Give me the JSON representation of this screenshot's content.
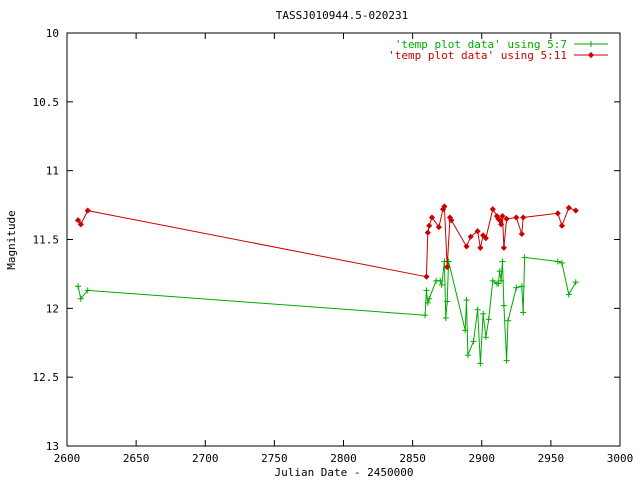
{
  "chart_data": {
    "type": "line",
    "title": "TASSJ010944.5-020231",
    "xlabel": "Julian Date - 2450000",
    "ylabel": "Magnitude",
    "xlim": [
      2600,
      3000
    ],
    "ylim": [
      10,
      13
    ],
    "y_inverted": true,
    "grid": false,
    "legend_position": "top-right",
    "x_ticks": [
      2600,
      2650,
      2700,
      2750,
      2800,
      2850,
      2900,
      2950,
      3000
    ],
    "y_ticks": [
      10,
      10.5,
      11,
      11.5,
      12,
      12.5,
      13
    ],
    "x_tick_labels": [
      "2600",
      "2650",
      "2700",
      "2750",
      "2800",
      "2850",
      "2900",
      "2950",
      "3000"
    ],
    "y_tick_labels": [
      "10",
      "10.5",
      "11",
      "11.5",
      "12",
      "12.5",
      "13"
    ],
    "series": [
      {
        "name": "'temp plot data' using 5:7",
        "color": "#00aa00",
        "marker": "plus",
        "points": [
          [
            2608,
            11.84
          ],
          [
            2610,
            11.93
          ],
          [
            2615,
            11.87
          ],
          [
            2859,
            12.05
          ],
          [
            2860,
            11.87
          ],
          [
            2861,
            11.96
          ],
          [
            2862,
            11.93
          ],
          [
            2867,
            11.8
          ],
          [
            2870,
            11.8
          ],
          [
            2871,
            11.83
          ],
          [
            2873,
            11.66
          ],
          [
            2874,
            12.07
          ],
          [
            2875,
            11.95
          ],
          [
            2876,
            11.66
          ],
          [
            2888,
            12.16
          ],
          [
            2889,
            11.94
          ],
          [
            2890,
            12.34
          ],
          [
            2894,
            12.24
          ],
          [
            2897,
            12.01
          ],
          [
            2899,
            12.4
          ],
          [
            2901,
            12.04
          ],
          [
            2903,
            12.21
          ],
          [
            2905,
            12.08
          ],
          [
            2908,
            11.8
          ],
          [
            2911,
            11.82
          ],
          [
            2912,
            11.82
          ],
          [
            2913,
            11.73
          ],
          [
            2914,
            11.8
          ],
          [
            2915,
            11.66
          ],
          [
            2916,
            11.98
          ],
          [
            2918,
            12.38
          ],
          [
            2919,
            12.09
          ],
          [
            2925,
            11.85
          ],
          [
            2929,
            11.84
          ],
          [
            2930,
            12.03
          ],
          [
            2931,
            11.63
          ],
          [
            2955,
            11.66
          ],
          [
            2958,
            11.67
          ],
          [
            2963,
            11.9
          ],
          [
            2968,
            11.81
          ]
        ]
      },
      {
        "name": "'temp plot data' using 5:11",
        "color": "#cc0000",
        "marker": "diamond",
        "points": [
          [
            2608,
            11.36
          ],
          [
            2610,
            11.39
          ],
          [
            2615,
            11.29
          ],
          [
            2860,
            11.77
          ],
          [
            2861,
            11.45
          ],
          [
            2862,
            11.4
          ],
          [
            2864,
            11.34
          ],
          [
            2869,
            11.41
          ],
          [
            2872,
            11.28
          ],
          [
            2873,
            11.26
          ],
          [
            2875,
            11.7
          ],
          [
            2877,
            11.34
          ],
          [
            2878,
            11.36
          ],
          [
            2889,
            11.55
          ],
          [
            2892,
            11.48
          ],
          [
            2897,
            11.44
          ],
          [
            2899,
            11.56
          ],
          [
            2901,
            11.47
          ],
          [
            2903,
            11.49
          ],
          [
            2908,
            11.28
          ],
          [
            2911,
            11.33
          ],
          [
            2912,
            11.35
          ],
          [
            2913,
            11.36
          ],
          [
            2914,
            11.39
          ],
          [
            2915,
            11.33
          ],
          [
            2916,
            11.56
          ],
          [
            2918,
            11.35
          ],
          [
            2925,
            11.34
          ],
          [
            2929,
            11.46
          ],
          [
            2930,
            11.34
          ],
          [
            2955,
            11.31
          ],
          [
            2958,
            11.4
          ],
          [
            2963,
            11.27
          ],
          [
            2968,
            11.29
          ]
        ]
      }
    ]
  }
}
